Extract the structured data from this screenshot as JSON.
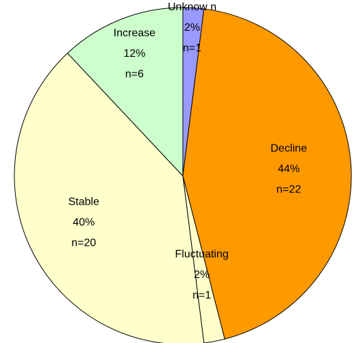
{
  "chart_data": {
    "type": "pie",
    "categories": [
      "Unknow n",
      "Decline",
      "Fluctuating",
      "Stable",
      "Increase"
    ],
    "values": [
      2,
      44,
      2,
      40,
      12
    ],
    "value_labels": [
      "2%",
      "44%",
      "2%",
      "40%",
      "12%"
    ],
    "n_labels": [
      "n=1",
      "n=22",
      "n=1",
      "n=20",
      "n=6"
    ],
    "colors": [
      "#9999ff",
      "#ff9900",
      "#ffffcc",
      "#ffffcc",
      "#ccffcc"
    ]
  }
}
